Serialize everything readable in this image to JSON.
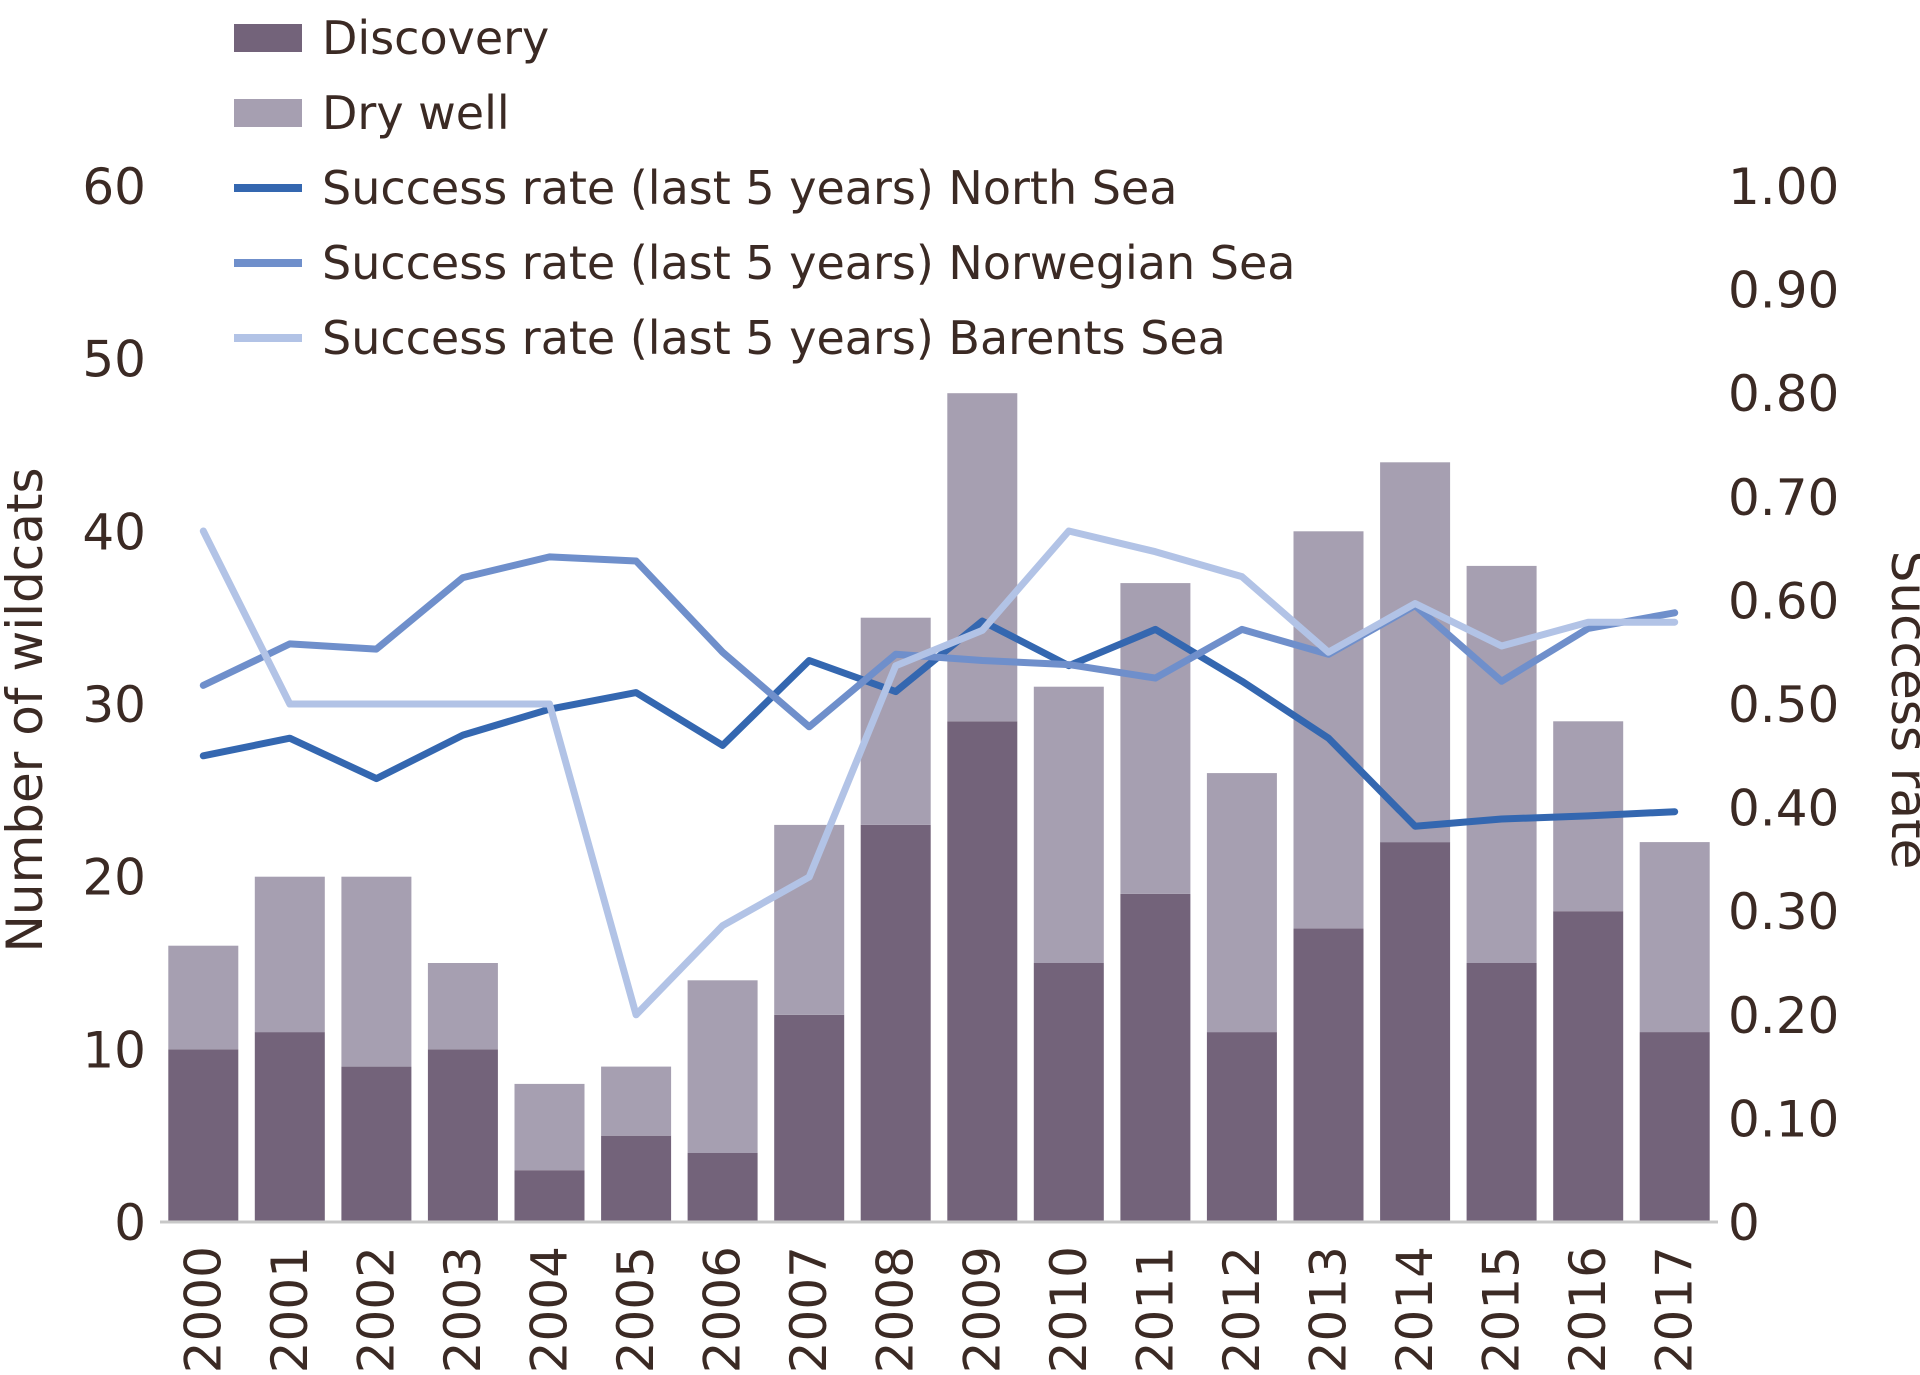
{
  "chart_data": {
    "type": "bar",
    "title": "",
    "categories": [
      "2000",
      "2001",
      "2002",
      "2003",
      "2004",
      "2005",
      "2006",
      "2007",
      "2008",
      "2009",
      "2010",
      "2011",
      "2012",
      "2013",
      "2014",
      "2015",
      "2016",
      "2017"
    ],
    "bar_series": [
      {
        "name": "Discovery",
        "color": "#73637a",
        "values": [
          10,
          11,
          9,
          10,
          3,
          5,
          4,
          12,
          23,
          29,
          15,
          19,
          11,
          17,
          22,
          15,
          18,
          11
        ]
      },
      {
        "name": "Dry well",
        "color": "#a69fb1",
        "values": [
          6,
          9,
          11,
          5,
          5,
          4,
          10,
          11,
          12,
          19,
          16,
          18,
          15,
          23,
          22,
          23,
          11,
          11
        ]
      }
    ],
    "line_series": [
      {
        "name": "Success rate (last 5 years) North Sea",
        "color": "#3467b0",
        "values": [
          0.45,
          0.467,
          0.428,
          0.47,
          0.495,
          0.511,
          0.46,
          0.542,
          0.512,
          0.58,
          0.537,
          0.572,
          0.522,
          0.467,
          0.382,
          0.389,
          0.392,
          0.396
        ]
      },
      {
        "name": "Success rate (last 5 years) Norwegian Sea",
        "color": "#6f8fcb",
        "values": [
          0.518,
          0.558,
          0.553,
          0.622,
          0.642,
          0.638,
          0.55,
          0.478,
          0.548,
          0.542,
          0.538,
          0.525,
          0.572,
          0.548,
          0.595,
          0.522,
          0.573,
          0.588
        ]
      },
      {
        "name": "Success rate (last 5 years) Barents Sea",
        "color": "#b2c3e6",
        "values": [
          0.667,
          0.5,
          0.5,
          0.5,
          0.5,
          0.2,
          0.286,
          0.333,
          0.537,
          0.571,
          0.667,
          0.647,
          0.623,
          0.55,
          0.597,
          0.556,
          0.579,
          0.579
        ]
      }
    ],
    "ylabel": "Number of wildcats",
    "ylim": [
      0,
      60
    ],
    "y_ticks": [
      "0",
      "10",
      "20",
      "30",
      "40",
      "50",
      "60"
    ],
    "y2label": "Success rate",
    "y2lim": [
      0,
      1
    ],
    "y2_ticks": [
      "0",
      "0.10",
      "0.20",
      "0.30",
      "0.40",
      "0.50",
      "0.60",
      "0.70",
      "0.80",
      "0.90",
      "1.00"
    ],
    "legend_position": "top-left",
    "grid": false
  }
}
